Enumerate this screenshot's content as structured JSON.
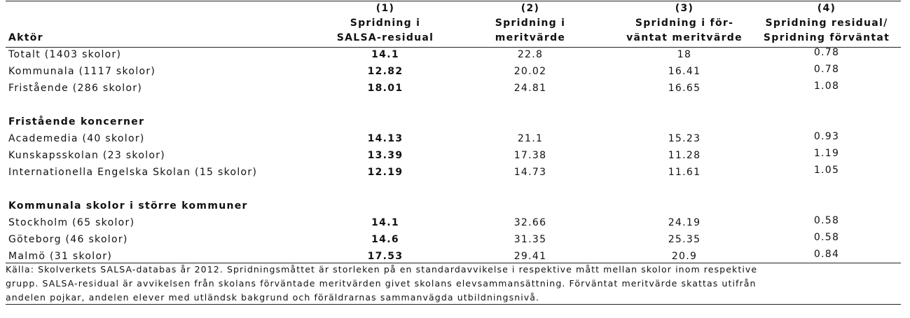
{
  "first_header": "Aktör",
  "columns": [
    {
      "number": "(1)",
      "label": [
        "Spridning i",
        "SALSA-residual"
      ]
    },
    {
      "number": "(2)",
      "label": [
        "Spridning i",
        "meritvärde"
      ]
    },
    {
      "number": "(3)",
      "label": [
        "Spridning i för-",
        "väntat meritvärde"
      ]
    },
    {
      "number": "(4)",
      "label": [
        "Spridning residual/",
        "Spridning förväntat"
      ]
    }
  ],
  "groups": [
    {
      "rows": [
        {
          "label": "Totalt (1403 skolor)",
          "values": [
            14.1,
            22.8,
            18,
            0.78
          ]
        },
        {
          "label": "Kommunala (1117 skolor)",
          "values": [
            12.82,
            20.02,
            16.41,
            0.78
          ]
        },
        {
          "label": "Fristående (286 skolor)",
          "values": [
            18.01,
            24.81,
            16.65,
            1.08
          ]
        }
      ]
    },
    {
      "title": "Fristående koncerner",
      "rows": [
        {
          "label": "Academedia (40 skolor)",
          "values": [
            14.13,
            21.1,
            15.23,
            0.93
          ]
        },
        {
          "label": "Kunskapsskolan (23 skolor)",
          "values": [
            13.39,
            17.38,
            11.28,
            1.19
          ]
        },
        {
          "label": "Internationella Engelska Skolan (15 skolor)",
          "values": [
            12.19,
            14.73,
            11.61,
            1.05
          ]
        }
      ]
    },
    {
      "title": "Kommunala skolor i större kommuner",
      "rows": [
        {
          "label": "Stockholm (65 skolor)",
          "values": [
            14.1,
            32.66,
            24.19,
            0.58
          ]
        },
        {
          "label": "Göteborg (46 skolor)",
          "values": [
            14.6,
            31.35,
            25.35,
            0.58
          ]
        },
        {
          "label": "Malmö (31 skolor)",
          "values": [
            17.53,
            29.41,
            20.9,
            0.84
          ]
        }
      ]
    }
  ],
  "footnote": [
    "Källa: Skolverkets SALSA-databas år 2012. Spridningsmåttet är storleken på en standardavvikelse i respektive mått mellan skolor inom respektive",
    "grupp. SALSA-residual är avvikelsen från skolans förväntade meritvärden givet skolans elevsammansättning. Förväntat meritvärde skattas utifrån",
    "andelen pojkar, andelen elever med utländsk bakgrund och föräldrarnas sammanvägda utbildningsnivå."
  ]
}
